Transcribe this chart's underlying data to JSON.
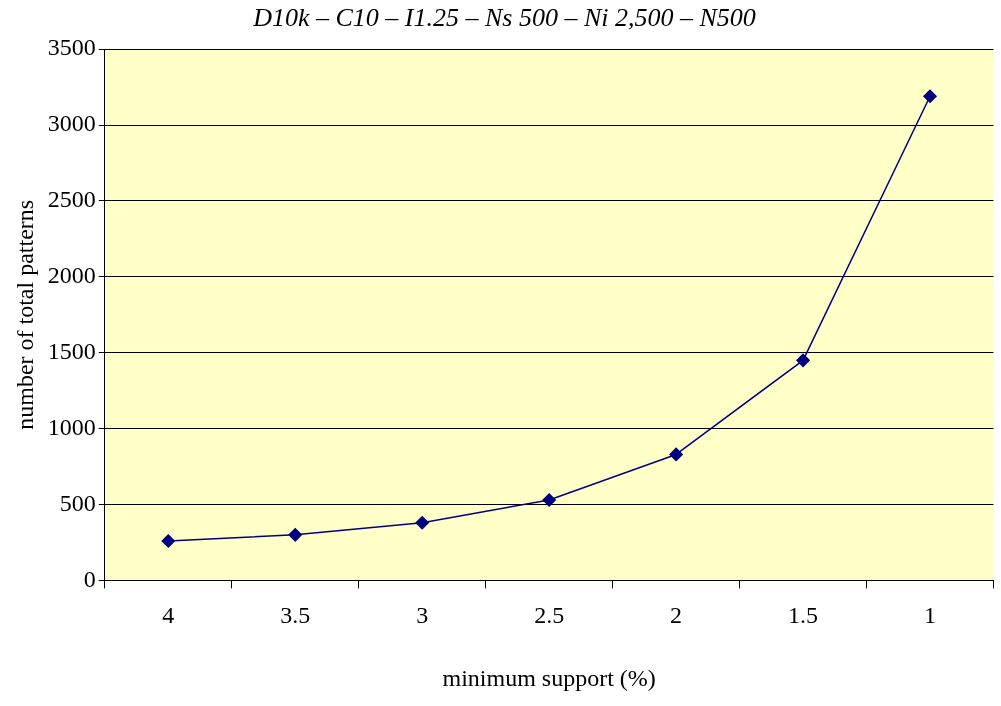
{
  "chart_data": {
    "type": "line",
    "title": "D10k – C10 – I1.25 – Ns 500 – Ni 2,500 – N500",
    "xlabel": "minimum support (%)",
    "ylabel": "number of total patterns",
    "categories": [
      "4",
      "3.5",
      "3",
      "2.5",
      "2",
      "1.5",
      "1"
    ],
    "series": [
      {
        "color": "#000080",
        "values": [
          260,
          300,
          380,
          530,
          830,
          1450,
          3190
        ]
      }
    ],
    "ylim": [
      0,
      3500
    ],
    "yticks": [
      0,
      500,
      1000,
      1500,
      2000,
      2500,
      3000,
      3500
    ],
    "grid": "y",
    "legend": false,
    "marker": "diamond",
    "line_style": "solid"
  }
}
